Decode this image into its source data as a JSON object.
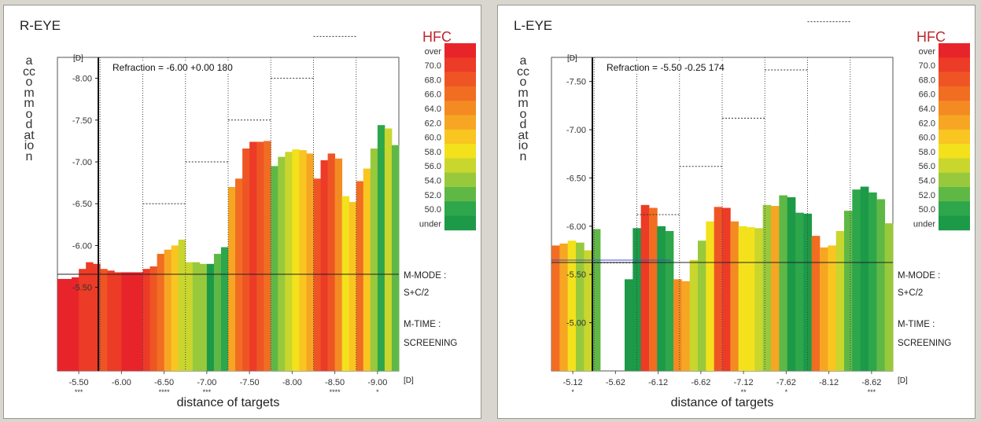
{
  "chart_data": [
    {
      "type": "bar",
      "title": "R-EYE",
      "ylabel": "accommodation",
      "y_unit": "[D]",
      "xlabel": "distance of targets",
      "x_unit": "[D]",
      "refraction": "Refraction = -6.00 +0.00 180",
      "ylim": [
        -4.5,
        -8.25
      ],
      "y_ticks": [
        "-8.00",
        "-7.50",
        "-7.00",
        "-6.50",
        "-6.00",
        "-5.50"
      ],
      "x_ticks": [
        "-5.50",
        "-6.00",
        "-6.50",
        "-7.00",
        "-7.50",
        "-8.00",
        "-8.50",
        "-9.00"
      ],
      "x_tick_marks": [
        "***",
        "",
        "****",
        "***",
        "",
        "",
        "****",
        "*"
      ],
      "target_steps": [
        -6.5,
        -7.0,
        -7.5,
        -8.0,
        -8.5,
        -9.0
      ],
      "m_mode_label": "M-MODE :",
      "m_mode_value": "S+C/2",
      "m_time_label": "M-TIME :",
      "m_time_value": "SCREENING",
      "values": [
        -5.6,
        -5.6,
        -5.62,
        -5.72,
        -5.8,
        -5.78,
        -5.72,
        -5.7,
        -5.68,
        -5.68,
        -5.68,
        -5.68,
        -5.72,
        -5.75,
        -5.9,
        -5.95,
        -6.0,
        -6.07,
        -5.8,
        -5.8,
        -5.78,
        -5.78,
        -5.9,
        -5.98,
        -6.7,
        -6.8,
        -7.16,
        -7.24,
        -7.24,
        -7.25,
        -6.95,
        -7.06,
        -7.12,
        -7.15,
        -7.14,
        -7.1,
        -6.8,
        -7.02,
        -7.1,
        -7.04,
        -6.59,
        -6.52,
        -6.77,
        -6.92,
        -7.16,
        -7.44,
        -7.4,
        -7.2
      ],
      "hfc": [
        0,
        0,
        0,
        1,
        1,
        1,
        2,
        1,
        1,
        0,
        0,
        0,
        1,
        2,
        3,
        5,
        6,
        8,
        8,
        9,
        9,
        12,
        10,
        11,
        5,
        3,
        2,
        1,
        2,
        3,
        10,
        9,
        8,
        7,
        6,
        5,
        2,
        1,
        2,
        4,
        7,
        6,
        3,
        6,
        9,
        11,
        8,
        10
      ]
    },
    {
      "type": "bar",
      "title": "L-EYE",
      "ylabel": "accommodation",
      "y_unit": "[D]",
      "xlabel": "distance of targets",
      "x_unit": "[D]",
      "refraction": "Refraction = -5.50 -0.25 174",
      "ylim": [
        -4.5,
        -7.75
      ],
      "y_ticks": [
        "-7.50",
        "-7.00",
        "-6.50",
        "-6.00",
        "-5.50",
        "-5.00"
      ],
      "x_ticks": [
        "-5.12",
        "-5.62",
        "-6.12",
        "-6.62",
        "-7.12",
        "-7.62",
        "-8.12",
        "-8.62"
      ],
      "x_tick_marks": [
        "*",
        "",
        "",
        "",
        "**",
        "*",
        "",
        "***"
      ],
      "target_steps": [
        -5.62,
        -6.12,
        -6.62,
        -7.12,
        -7.62,
        -8.12,
        -8.62
      ],
      "m_mode_label": "M-MODE :",
      "m_mode_value": "S+C/2",
      "m_time_label": "M-TIME :",
      "m_time_value": "SCREENING",
      "values": [
        -5.8,
        -5.82,
        -5.85,
        -5.83,
        -5.75,
        -5.97,
        null,
        null,
        null,
        -5.45,
        -5.98,
        -6.22,
        -6.19,
        -6.0,
        -5.95,
        -5.45,
        -5.43,
        -5.65,
        -5.85,
        -6.05,
        -6.2,
        -6.19,
        -6.05,
        -6.0,
        -5.99,
        -5.98,
        -6.22,
        -6.21,
        -6.32,
        -6.3,
        -6.14,
        -6.13,
        -5.9,
        -5.78,
        -5.8,
        -5.95,
        -6.16,
        -6.38,
        -6.41,
        -6.35,
        -6.28,
        -6.03
      ],
      "hfc": [
        3,
        5,
        7,
        9,
        8,
        10,
        13,
        13,
        13,
        12,
        13,
        1,
        3,
        12,
        11,
        4,
        5,
        8,
        9,
        7,
        2,
        1,
        4,
        7,
        7,
        8,
        9,
        5,
        10,
        12,
        11,
        12,
        3,
        5,
        6,
        8,
        10,
        11,
        12,
        11,
        10,
        9
      ]
    }
  ],
  "hfc_legend": {
    "title": "HFC",
    "labels": [
      "over",
      "70.0",
      "68.0",
      "66.0",
      "64.0",
      "62.0",
      "60.0",
      "58.0",
      "56.0",
      "54.0",
      "52.0",
      "50.0",
      "under"
    ],
    "colors": [
      "#e8242b",
      "#ec3b26",
      "#ef5524",
      "#f16d22",
      "#f38b22",
      "#f6a623",
      "#f9c521",
      "#f3e11c",
      "#c9d62e",
      "#98c93c",
      "#5fb846",
      "#2ea64b",
      "#1c9a48"
    ]
  }
}
